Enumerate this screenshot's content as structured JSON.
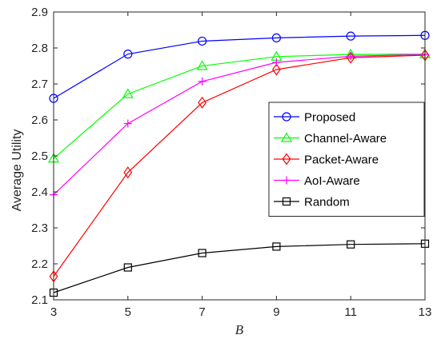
{
  "chart_data": {
    "type": "line",
    "title": "",
    "xlabel": "B",
    "ylabel": "Average Utility",
    "x": [
      3,
      5,
      7,
      9,
      11,
      13
    ],
    "xticks": [
      "3",
      "5",
      "7",
      "9",
      "11",
      "13"
    ],
    "xlim": [
      3,
      13
    ],
    "ylim": [
      2.1,
      2.9
    ],
    "yticks": [
      "2.1",
      "2.2",
      "2.3",
      "2.4",
      "2.5",
      "2.6",
      "2.7",
      "2.8",
      "2.9"
    ],
    "grid": false,
    "legend_position": "center-right",
    "series": [
      {
        "name": "Proposed",
        "color": "#0000ff",
        "marker": "circle",
        "values": [
          2.66,
          2.783,
          2.819,
          2.828,
          2.833,
          2.835
        ]
      },
      {
        "name": "Channel-Aware",
        "color": "#00ff00",
        "marker": "triangle",
        "values": [
          2.493,
          2.672,
          2.75,
          2.776,
          2.782,
          2.783
        ]
      },
      {
        "name": "Packet-Aware",
        "color": "#ff0000",
        "marker": "diamond",
        "values": [
          2.165,
          2.454,
          2.648,
          2.74,
          2.773,
          2.78
        ]
      },
      {
        "name": "AoI-Aware",
        "color": "#ff00ff",
        "marker": "plus",
        "values": [
          2.392,
          2.59,
          2.707,
          2.76,
          2.777,
          2.782
        ]
      },
      {
        "name": "Random",
        "color": "#000000",
        "marker": "square",
        "values": [
          2.12,
          2.19,
          2.23,
          2.248,
          2.254,
          2.256
        ]
      }
    ]
  }
}
